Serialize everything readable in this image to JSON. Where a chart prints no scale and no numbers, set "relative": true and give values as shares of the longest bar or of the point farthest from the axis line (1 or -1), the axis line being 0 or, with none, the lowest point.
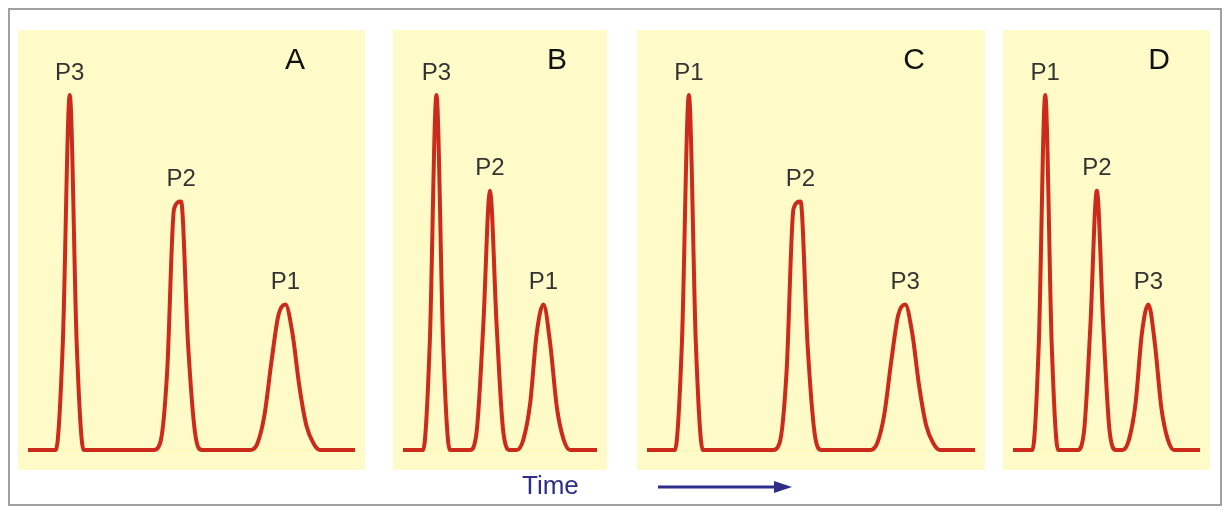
{
  "chart_data": [
    {
      "type": "line",
      "title": "A",
      "relative": true,
      "categories": [
        null,
        null,
        null,
        null,
        null,
        null,
        null,
        null,
        null,
        null,
        null,
        null,
        null,
        null,
        null,
        null,
        null,
        null,
        null,
        null,
        null,
        null,
        null,
        null,
        null,
        null,
        null,
        null,
        null,
        null,
        null,
        null,
        null,
        null,
        null,
        null,
        null,
        null,
        null,
        null,
        null,
        null,
        null,
        null,
        null,
        null,
        null,
        null
      ],
      "series": [
        {
          "color": "#cc2a1a",
          "values": [
            0,
            0,
            0,
            0,
            0,
            0.3,
            1,
            0.3,
            0,
            0,
            0,
            0,
            0,
            0,
            0,
            0,
            0,
            0,
            0,
            0.02,
            0.22,
            0.68,
            0.7,
            0.3,
            0.05,
            0,
            0,
            0,
            0,
            0,
            0,
            0,
            0,
            0.02,
            0.1,
            0.25,
            0.38,
            0.41,
            0.33,
            0.18,
            0.07,
            0.02,
            0,
            0,
            0,
            0,
            0,
            0
          ]
        }
      ],
      "annotations": [
        {
          "text": "P3",
          "y": 1
        },
        {
          "text": "P2",
          "y": 0.7
        },
        {
          "text": "P1",
          "y": 0.41
        }
      ]
    },
    {
      "type": "line",
      "title": "B",
      "xlabel": "Time",
      "relative": true,
      "categories": [
        null,
        null,
        null,
        null,
        null,
        null,
        null,
        null,
        null,
        null,
        null,
        null,
        null,
        null,
        null,
        null,
        null,
        null,
        null,
        null,
        null,
        null,
        null,
        null,
        null,
        null,
        null,
        null,
        null,
        null
      ],
      "series": [
        {
          "color": "#cc2a1a",
          "values": [
            0,
            0,
            0,
            0,
            0.3,
            1,
            0.3,
            0,
            0,
            0,
            0,
            0.05,
            0.35,
            0.73,
            0.35,
            0.05,
            0,
            0,
            0.03,
            0.13,
            0.33,
            0.41,
            0.3,
            0.12,
            0.03,
            0,
            0,
            0,
            0,
            0
          ]
        }
      ],
      "annotations": [
        {
          "text": "P3",
          "y": 1
        },
        {
          "text": "P2",
          "y": 0.73
        },
        {
          "text": "P1",
          "y": 0.41
        }
      ]
    },
    {
      "type": "line",
      "title": "C",
      "relative": true,
      "categories": [
        null,
        null,
        null,
        null,
        null,
        null,
        null,
        null,
        null,
        null,
        null,
        null,
        null,
        null,
        null,
        null,
        null,
        null,
        null,
        null,
        null,
        null,
        null,
        null,
        null,
        null,
        null,
        null,
        null,
        null,
        null,
        null,
        null,
        null,
        null,
        null,
        null,
        null,
        null,
        null,
        null,
        null,
        null,
        null,
        null,
        null,
        null,
        null
      ],
      "series": [
        {
          "color": "#cc2a1a",
          "values": [
            0,
            0,
            0,
            0,
            0,
            0.3,
            1,
            0.3,
            0,
            0,
            0,
            0,
            0,
            0,
            0,
            0,
            0,
            0,
            0,
            0.02,
            0.22,
            0.68,
            0.7,
            0.3,
            0.05,
            0,
            0,
            0,
            0,
            0,
            0,
            0,
            0,
            0.02,
            0.1,
            0.25,
            0.38,
            0.41,
            0.33,
            0.18,
            0.07,
            0.02,
            0,
            0,
            0,
            0,
            0,
            0
          ]
        }
      ],
      "annotations": [
        {
          "text": "P1",
          "y": 1
        },
        {
          "text": "P2",
          "y": 0.7
        },
        {
          "text": "P3",
          "y": 0.41
        }
      ]
    },
    {
      "type": "line",
      "title": "D",
      "relative": true,
      "categories": [
        null,
        null,
        null,
        null,
        null,
        null,
        null,
        null,
        null,
        null,
        null,
        null,
        null,
        null,
        null,
        null,
        null,
        null,
        null,
        null,
        null,
        null,
        null,
        null,
        null,
        null,
        null,
        null,
        null,
        null
      ],
      "series": [
        {
          "color": "#cc2a1a",
          "values": [
            0,
            0,
            0,
            0,
            0.3,
            1,
            0.3,
            0,
            0,
            0,
            0,
            0.05,
            0.35,
            0.73,
            0.35,
            0.05,
            0,
            0,
            0.03,
            0.13,
            0.33,
            0.41,
            0.3,
            0.12,
            0.03,
            0,
            0,
            0,
            0,
            0
          ]
        }
      ],
      "annotations": [
        {
          "text": "P1",
          "y": 1
        },
        {
          "text": "P2",
          "y": 0.73
        },
        {
          "text": "P3",
          "y": 0.41
        }
      ]
    }
  ]
}
